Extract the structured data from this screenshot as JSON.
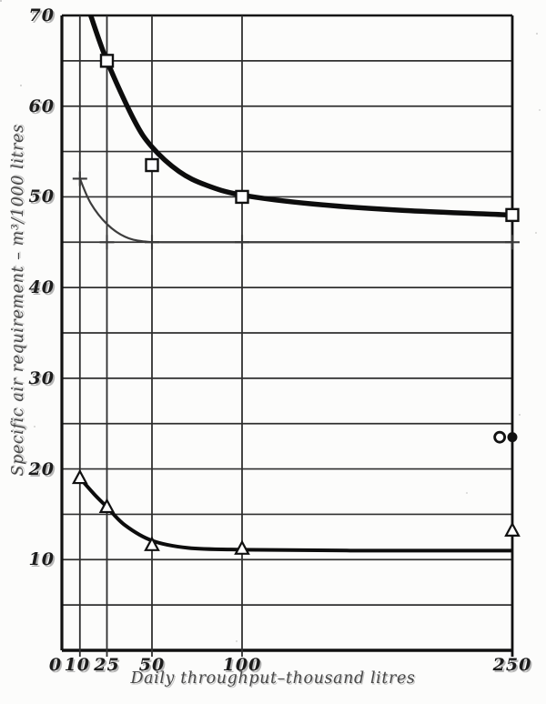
{
  "figure": {
    "background": "#fcfcfb",
    "line_color": "#0d0d0d",
    "grid_color": "#2f2f2f"
  },
  "chart_data": {
    "type": "line",
    "title": "",
    "xlabel": "Daily throughput–thousand litres",
    "ylabel": "Specific air requirement – m³/1000 litres",
    "xlim": [
      0,
      250
    ],
    "ylim": [
      0,
      70
    ],
    "grid": "on",
    "legend": "none",
    "y_gridline_step": 5,
    "x_gridlines": [
      10,
      25,
      50,
      100,
      250
    ],
    "x_ticks": [
      {
        "value": 0,
        "label": "0",
        "dx": -7
      },
      {
        "value": 10,
        "label": "10",
        "dx": -3
      },
      {
        "value": 25,
        "label": "25",
        "dx": 0
      },
      {
        "value": 50,
        "label": "50",
        "dx": 0
      },
      {
        "value": 100,
        "label": "100",
        "dx": 0
      },
      {
        "value": 250,
        "label": "250",
        "dx": 0
      }
    ],
    "y_ticks": [
      {
        "value": 70,
        "label": "70"
      },
      {
        "value": 60,
        "label": "60"
      },
      {
        "value": 50,
        "label": "50"
      },
      {
        "value": 40,
        "label": "40"
      },
      {
        "value": 30,
        "label": "30"
      },
      {
        "value": 20,
        "label": "20"
      },
      {
        "value": 10,
        "label": "10"
      }
    ],
    "series": [
      {
        "name": "upper-curve-squares",
        "marker": "square",
        "line_color": "#0d0d0d",
        "line_width": 5.5,
        "points": [
          [
            25,
            65
          ],
          [
            50,
            53.5
          ],
          [
            100,
            50
          ],
          [
            250,
            48
          ]
        ],
        "curve": [
          [
            16,
            70
          ],
          [
            25,
            65
          ],
          [
            40,
            58.5
          ],
          [
            50,
            55.5
          ],
          [
            65,
            52.8
          ],
          [
            80,
            51.3
          ],
          [
            100,
            50.2
          ],
          [
            140,
            49.2
          ],
          [
            190,
            48.5
          ],
          [
            250,
            48
          ]
        ]
      },
      {
        "name": "middle-curve-plus",
        "marker": "plus",
        "line_color": "#3d3d3d",
        "line_width": 2.2,
        "points": [
          [
            10,
            52
          ],
          [
            25,
            45
          ],
          [
            50,
            45
          ],
          [
            100,
            45
          ],
          [
            250,
            45
          ]
        ],
        "curve": [
          [
            10,
            52
          ],
          [
            16,
            49.3
          ],
          [
            25,
            47
          ],
          [
            35,
            45.6
          ],
          [
            45,
            45.1
          ],
          [
            60,
            45
          ],
          [
            120,
            45
          ],
          [
            250,
            45
          ]
        ]
      },
      {
        "name": "lower-curve-triangles",
        "marker": "triangle",
        "line_color": "#0d0d0d",
        "line_width": 4,
        "points": [
          [
            10,
            19
          ],
          [
            25,
            15.8
          ],
          [
            50,
            11.6
          ],
          [
            100,
            11.2
          ],
          [
            250,
            13.2
          ]
        ],
        "curve": [
          [
            10,
            19
          ],
          [
            18,
            17.2
          ],
          [
            25,
            15.8
          ],
          [
            35,
            13.8
          ],
          [
            50,
            12.1
          ],
          [
            70,
            11.3
          ],
          [
            100,
            11.1
          ],
          [
            160,
            11
          ],
          [
            250,
            11
          ]
        ]
      }
    ],
    "extra_markers": [
      {
        "marker": "circle-open",
        "x": 243,
        "y": 23.5
      },
      {
        "marker": "circle-filled",
        "x": 250,
        "y": 23.5
      }
    ]
  }
}
